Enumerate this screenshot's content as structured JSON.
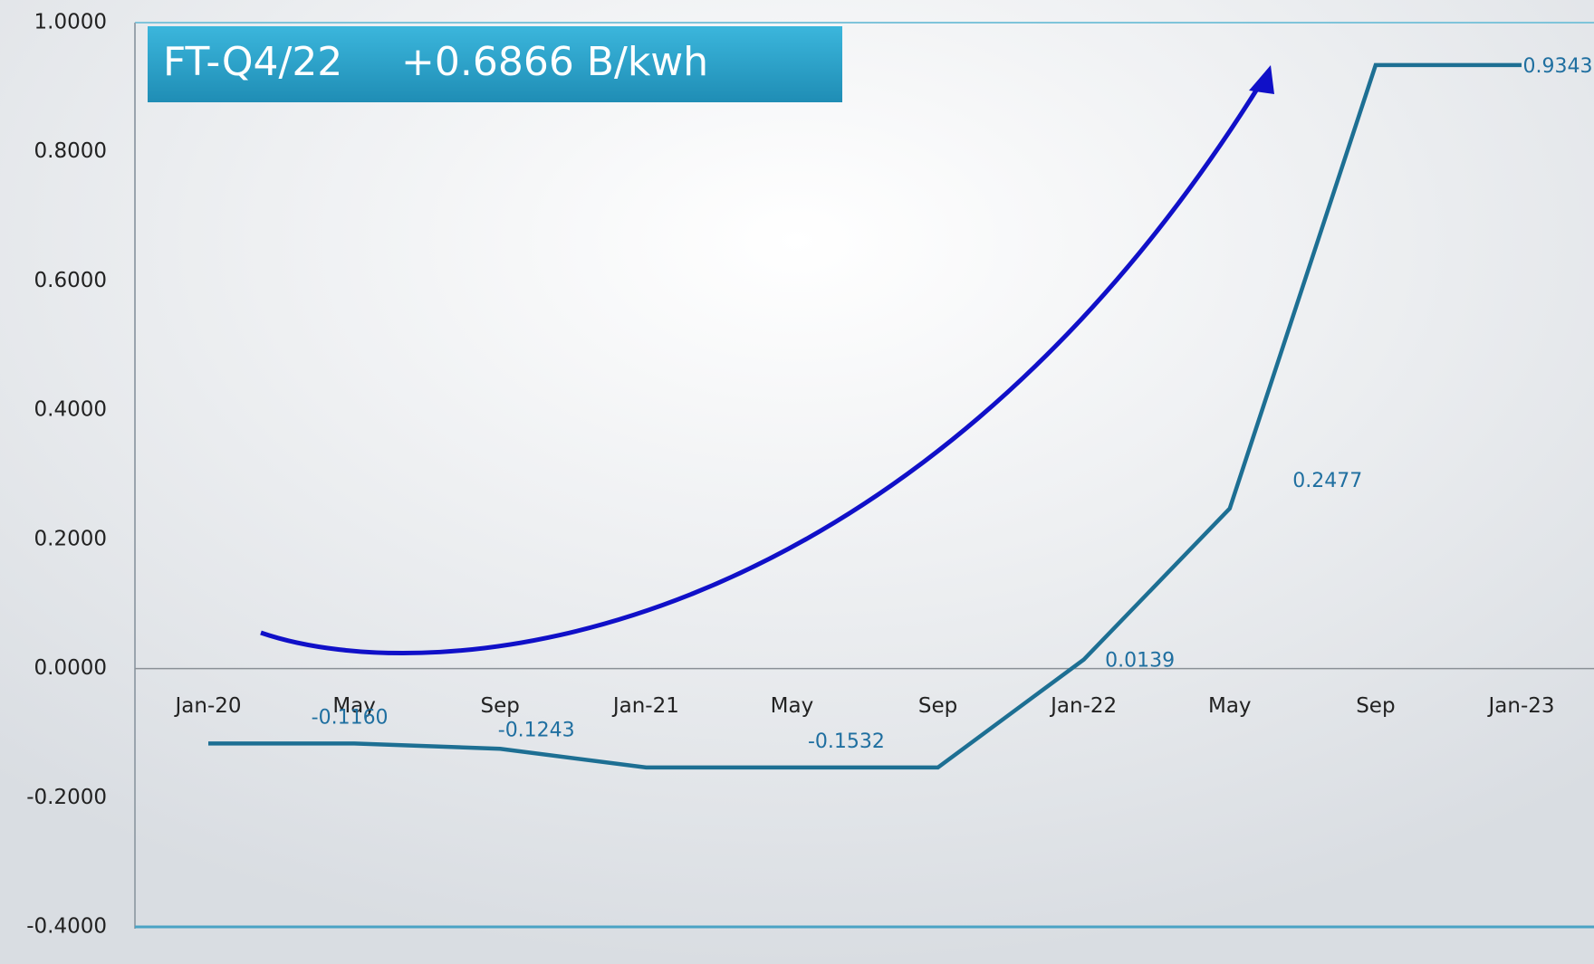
{
  "chart_data": {
    "type": "line",
    "title": "FT-Q4/22",
    "subtitle": "+0.6866 B/kwh",
    "categories": [
      "Jan-20",
      "May",
      "Sep",
      "Jan-21",
      "May",
      "Sep",
      "Jan-22",
      "May",
      "Sep",
      "Jan-23"
    ],
    "series": [
      {
        "color": "#1d6f93",
        "values": [
          -0.116,
          -0.116,
          -0.1243,
          -0.1532,
          -0.1532,
          -0.1532,
          0.0139,
          0.2477,
          0.9343,
          0.9343
        ],
        "value_labels": [
          null,
          "-0.1160",
          "-0.1243",
          null,
          "-0.1532",
          null,
          "0.0139",
          "0.2477",
          null,
          "0.9343"
        ]
      }
    ],
    "ylim": [
      -0.4,
      1.0
    ],
    "yticks": [
      {
        "value": -0.4,
        "label": "-0.4000"
      },
      {
        "value": -0.2,
        "label": "-0.2000"
      },
      {
        "value": 0,
        "label": "0.0000"
      },
      {
        "value": 0.2,
        "label": "0.2000"
      },
      {
        "value": 0.4,
        "label": "0.4000"
      },
      {
        "value": 0.6,
        "label": "0.6000"
      },
      {
        "value": 0.8,
        "label": "0.8000"
      },
      {
        "value": 1.0,
        "label": "1.0000"
      }
    ]
  }
}
